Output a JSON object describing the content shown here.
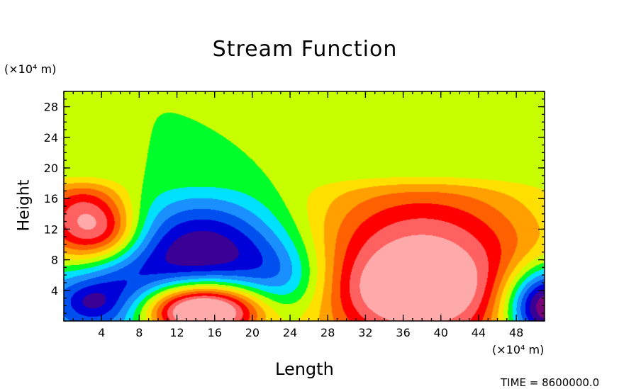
{
  "chart_data": {
    "type": "heatmap",
    "title": "Stream Function",
    "xlabel": "Length",
    "ylabel": "Height",
    "x_unit": "(×10⁴ m)",
    "y_unit": "(×10⁴ m)",
    "xlim": [
      0,
      51
    ],
    "ylim": [
      0,
      30
    ],
    "x_ticks": [
      4,
      8,
      12,
      16,
      20,
      24,
      28,
      32,
      36,
      40,
      44,
      48
    ],
    "y_ticks": [
      4,
      8,
      12,
      16,
      20,
      24,
      28
    ],
    "time_label": "TIME = 8600000.0",
    "colormap": [
      "#7a007a",
      "#3a0096",
      "#0000d8",
      "#0050f0",
      "#1a90ff",
      "#00e0ff",
      "#00ff2a",
      "#c8ff00",
      "#ffe000",
      "#ffa000",
      "#ff6000",
      "#ff0000",
      "#ff6060",
      "#ffaaaa"
    ],
    "field": {
      "background": 7,
      "gaussians": [
        {
          "x": 2,
          "y": 13,
          "sx": 3.5,
          "sy": 4.5,
          "a": 6
        },
        {
          "x": 5,
          "y": 11.5,
          "sx": 2.5,
          "sy": 2.5,
          "a": 2
        },
        {
          "x": 15,
          "y": 9,
          "sx": 6,
          "sy": 5,
          "a": -6
        },
        {
          "x": 23.5,
          "y": 5,
          "sx": 3.5,
          "sy": 4,
          "a": -3
        },
        {
          "x": 4,
          "y": 3,
          "sx": 5,
          "sy": 4,
          "a": -5
        },
        {
          "x": 3,
          "y": 2.5,
          "sx": 1.5,
          "sy": 1.2,
          "a": -1
        },
        {
          "x": 14.5,
          "y": 1.5,
          "sx": 4.5,
          "sy": 2.5,
          "a": 11
        },
        {
          "x": 38,
          "y": 6,
          "sx": 9,
          "sy": 9,
          "a": 7
        },
        {
          "x": 37,
          "y": 4,
          "sx": 5,
          "sy": 3,
          "a": 2
        },
        {
          "x": 51,
          "y": 2,
          "sx": 3,
          "sy": 3.5,
          "a": -9
        }
      ]
    }
  }
}
